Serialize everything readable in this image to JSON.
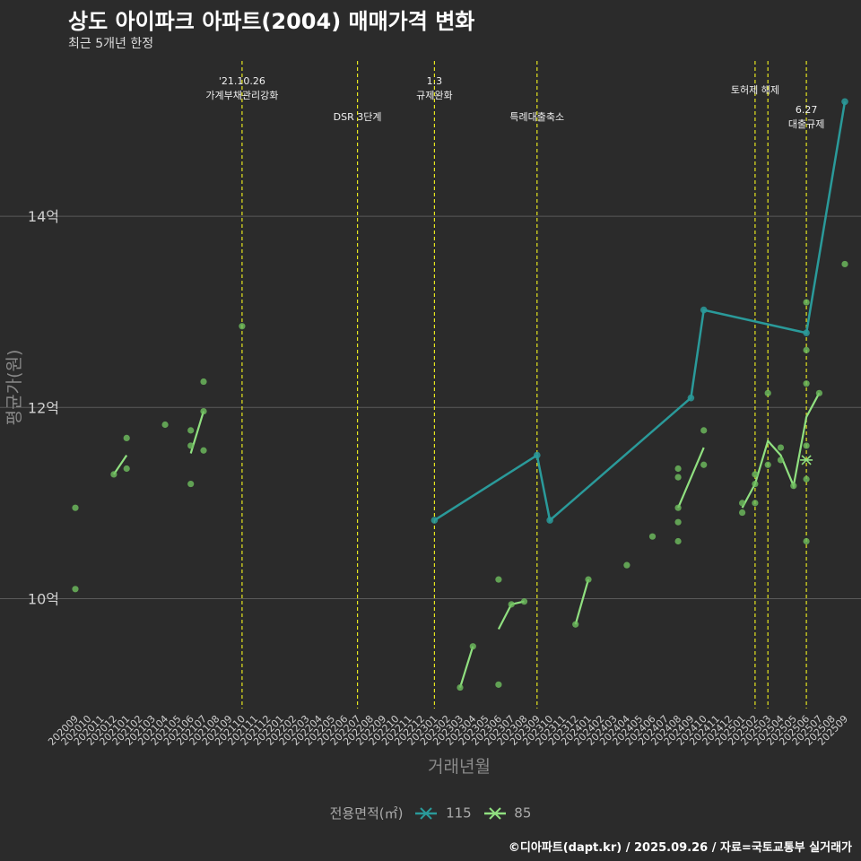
{
  "header": {
    "title": "상도 아이파크 아파트(2004) 매매가격 변화",
    "subtitle": "최근 5개년 한정"
  },
  "caption": "©디아파트(dapt.kr) / 2025.09.26 / 자료=국토교통부 실거래가",
  "legend": {
    "title": "전용면적(㎡)",
    "items": [
      {
        "label": "115",
        "color": "#2a9a9a"
      },
      {
        "label": "85",
        "color": "#90e080"
      }
    ]
  },
  "colors": {
    "background": "#2b2b2b",
    "grid": "#5a5a5a",
    "event_line": "#e6e61e",
    "series_115": "#2a9a9a",
    "series_85": "#90e080",
    "point": "#6fbf5f"
  },
  "chart_data": {
    "type": "line",
    "xlabel": "거래년월",
    "ylabel": "평균가(원)",
    "ylim": [
      8.85,
      15.7
    ],
    "yticks": [
      {
        "value": 10,
        "label": "10억"
      },
      {
        "value": 12,
        "label": "12억"
      },
      {
        "value": 14,
        "label": "14억"
      }
    ],
    "x": [
      "202009",
      "202010",
      "202011",
      "202012",
      "202101",
      "202102",
      "202103",
      "202104",
      "202105",
      "202106",
      "202107",
      "202108",
      "202109",
      "202110",
      "202111",
      "202112",
      "202201",
      "202202",
      "202203",
      "202204",
      "202205",
      "202206",
      "202207",
      "202208",
      "202209",
      "202210",
      "202211",
      "202212",
      "202301",
      "202302",
      "202303",
      "202304",
      "202305",
      "202306",
      "202307",
      "202308",
      "202309",
      "202310",
      "202311",
      "202312",
      "202401",
      "202402",
      "202403",
      "202404",
      "202405",
      "202406",
      "202407",
      "202408",
      "202409",
      "202410",
      "202411",
      "202412",
      "202501",
      "202502",
      "202503",
      "202504",
      "202505",
      "202506",
      "202507",
      "202508",
      "202509"
    ],
    "events": [
      {
        "x": "202110",
        "label": "'21.10.26\n가계부채관리강화"
      },
      {
        "x": "202207",
        "label": "DSR 3단계"
      },
      {
        "x": "202301",
        "label": "1.3\n규제완화"
      },
      {
        "x": "202309",
        "label": "특례대출축소"
      },
      {
        "x": "202502",
        "label": "토허제 해제"
      },
      {
        "x": "202503",
        "label": ""
      },
      {
        "x": "202506",
        "label": "6.27\n대출규제"
      }
    ],
    "series": [
      {
        "name": "115",
        "line": [
          [
            "202301",
            10.82
          ],
          [
            "202309",
            11.5
          ],
          [
            "202310",
            10.82
          ],
          [
            "202409",
            12.1
          ],
          [
            "202410",
            13.02
          ],
          [
            "202506",
            12.78
          ],
          [
            "202509",
            15.2
          ]
        ],
        "points": [
          [
            "202301",
            10.82
          ],
          [
            "202309",
            11.5
          ],
          [
            "202310",
            10.82
          ],
          [
            "202409",
            12.1
          ],
          [
            "202410",
            13.02
          ],
          [
            "202506",
            12.78
          ],
          [
            "202509",
            15.2
          ]
        ],
        "markers": []
      },
      {
        "name": "85",
        "line_segments": [
          [
            [
              "202012",
              11.3
            ],
            [
              "202101",
              11.5
            ]
          ],
          [
            [
              "202106",
              11.52
            ],
            [
              "202107",
              11.96
            ]
          ],
          [
            [
              "202303",
              9.07
            ],
            [
              "202304",
              9.5
            ]
          ],
          [
            [
              "202306",
              9.68
            ],
            [
              "202307",
              9.94
            ],
            [
              "202308",
              9.97
            ]
          ],
          [
            [
              "202312",
              9.73
            ],
            [
              "202401",
              10.2
            ]
          ],
          [
            [
              "202408",
              10.95
            ],
            [
              "202410",
              11.58
            ]
          ],
          [
            [
              "202501",
              10.95
            ],
            [
              "202502",
              11.2
            ],
            [
              "202503",
              11.65
            ],
            [
              "202504",
              11.5
            ],
            [
              "202505",
              11.18
            ],
            [
              "202506",
              11.9
            ],
            [
              "202507",
              12.15
            ]
          ]
        ],
        "points": [
          [
            "202009",
            10.1
          ],
          [
            "202009",
            10.95
          ],
          [
            "202012",
            11.3
          ],
          [
            "202101",
            11.68
          ],
          [
            "202101",
            11.36
          ],
          [
            "202104",
            11.82
          ],
          [
            "202106",
            11.2
          ],
          [
            "202106",
            11.6
          ],
          [
            "202106",
            11.76
          ],
          [
            "202107",
            12.27
          ],
          [
            "202107",
            11.55
          ],
          [
            "202107",
            11.96
          ],
          [
            "202110",
            12.85
          ],
          [
            "202303",
            9.07
          ],
          [
            "202304",
            9.5
          ],
          [
            "202306",
            10.2
          ],
          [
            "202306",
            9.1
          ],
          [
            "202307",
            9.94
          ],
          [
            "202308",
            9.97
          ],
          [
            "202312",
            9.73
          ],
          [
            "202401",
            10.2
          ],
          [
            "202404",
            10.35
          ],
          [
            "202406",
            10.65
          ],
          [
            "202408",
            10.6
          ],
          [
            "202408",
            10.8
          ],
          [
            "202408",
            10.95
          ],
          [
            "202408",
            11.27
          ],
          [
            "202408",
            11.36
          ],
          [
            "202410",
            11.76
          ],
          [
            "202410",
            11.4
          ],
          [
            "202501",
            10.9
          ],
          [
            "202501",
            11.0
          ],
          [
            "202502",
            11.0
          ],
          [
            "202502",
            11.2
          ],
          [
            "202502",
            11.3
          ],
          [
            "202503",
            12.15
          ],
          [
            "202503",
            11.4
          ],
          [
            "202504",
            11.58
          ],
          [
            "202504",
            11.45
          ],
          [
            "202505",
            11.18
          ],
          [
            "202506",
            13.1
          ],
          [
            "202506",
            12.6
          ],
          [
            "202506",
            12.25
          ],
          [
            "202506",
            11.6
          ],
          [
            "202506",
            11.25
          ],
          [
            "202506",
            10.6
          ],
          [
            "202507",
            12.15
          ],
          [
            "202509",
            13.5
          ]
        ],
        "markers": [
          [
            "202506",
            11.45
          ]
        ]
      }
    ]
  }
}
